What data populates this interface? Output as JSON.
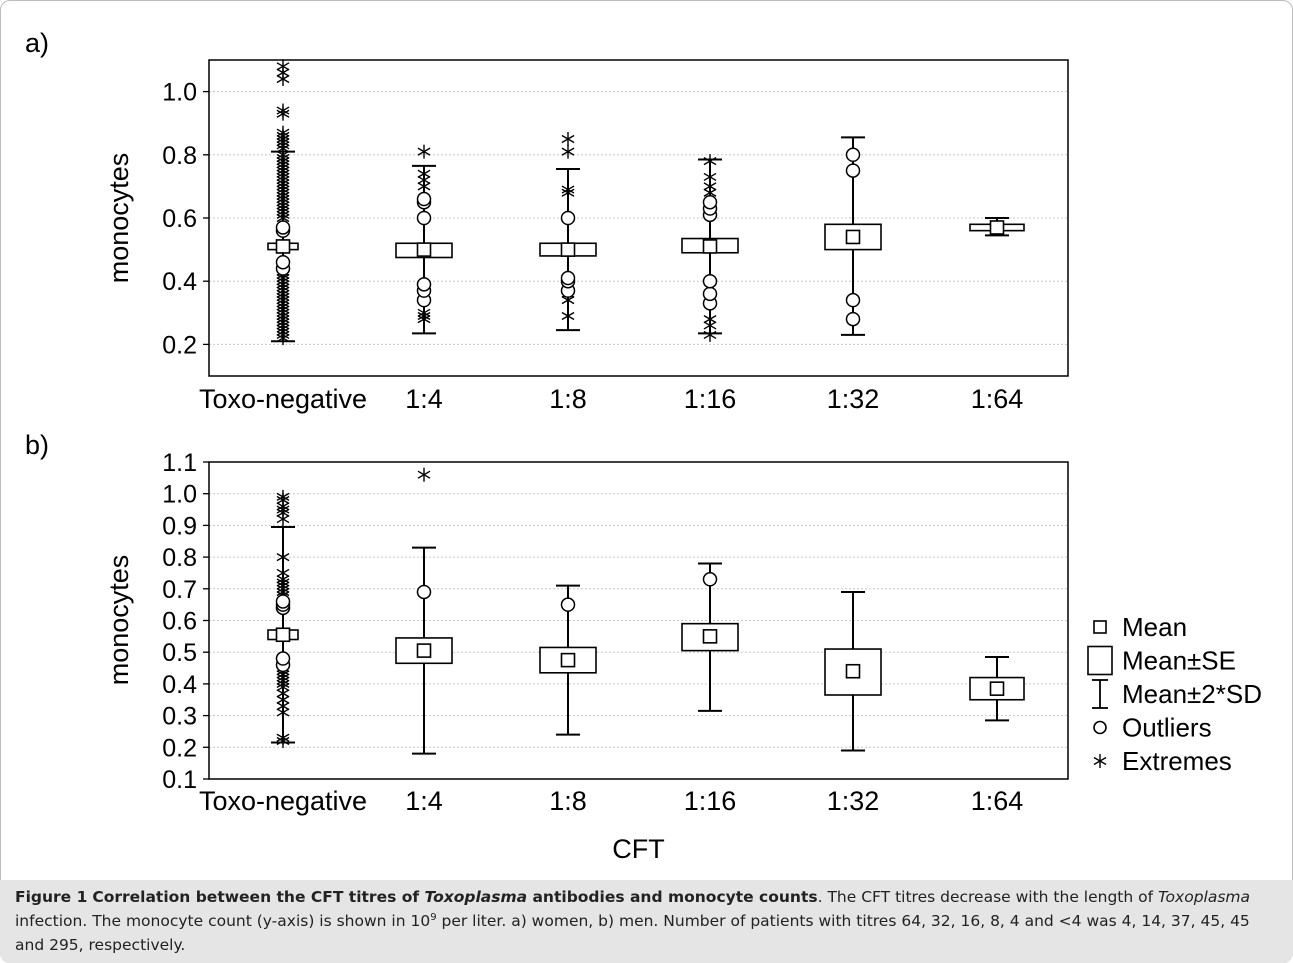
{
  "panels": {
    "a_label": "a)",
    "b_label": "b)"
  },
  "chart_data": [
    {
      "type": "box",
      "panel": "a)",
      "ylabel": "monocytes",
      "ylim": [
        0.1,
        1.1
      ],
      "yticks": [
        "0.2",
        "0.4",
        "0.6",
        "0.8",
        "1.0"
      ],
      "yticks_values": [
        0.2,
        0.4,
        0.6,
        0.8,
        1.0
      ],
      "categories": [
        "Toxo-negative",
        "1:4",
        "1:8",
        "1:16",
        "1:32",
        "1:64"
      ],
      "groups": [
        {
          "mean": 0.51,
          "se_low": 0.5,
          "se_high": 0.52,
          "sd_low": 0.21,
          "sd_high": 0.81,
          "outliers": [
            0.44,
            0.46,
            0.56,
            0.57
          ],
          "extremes": [
            0.22,
            0.23,
            0.24,
            0.25,
            0.26,
            0.27,
            0.28,
            0.29,
            0.3,
            0.31,
            0.32,
            0.33,
            0.34,
            0.35,
            0.36,
            0.37,
            0.38,
            0.39,
            0.4,
            0.41,
            0.42,
            0.43,
            0.6,
            0.61,
            0.62,
            0.63,
            0.64,
            0.65,
            0.66,
            0.67,
            0.68,
            0.69,
            0.7,
            0.71,
            0.72,
            0.73,
            0.74,
            0.75,
            0.76,
            0.77,
            0.78,
            0.79,
            0.8,
            0.82,
            0.83,
            0.84,
            0.85,
            0.86,
            0.87,
            0.93,
            0.94,
            1.04,
            1.06,
            1.08
          ]
        },
        {
          "mean": 0.5,
          "se_low": 0.475,
          "se_high": 0.52,
          "sd_low": 0.235,
          "sd_high": 0.765,
          "outliers": [
            0.34,
            0.37,
            0.39,
            0.6,
            0.65,
            0.66
          ],
          "extremes": [
            0.28,
            0.29,
            0.3,
            0.7,
            0.72,
            0.74,
            0.81
          ]
        },
        {
          "mean": 0.5,
          "se_low": 0.48,
          "se_high": 0.52,
          "sd_low": 0.245,
          "sd_high": 0.755,
          "outliers": [
            0.37,
            0.4,
            0.41,
            0.6
          ],
          "extremes": [
            0.29,
            0.34,
            0.36,
            0.68,
            0.69,
            0.81,
            0.85
          ]
        },
        {
          "mean": 0.51,
          "se_low": 0.49,
          "se_high": 0.535,
          "sd_low": 0.235,
          "sd_high": 0.785,
          "outliers": [
            0.33,
            0.36,
            0.4,
            0.61,
            0.63,
            0.65
          ],
          "extremes": [
            0.23,
            0.26,
            0.28,
            0.68,
            0.7,
            0.73,
            0.78
          ]
        },
        {
          "mean": 0.54,
          "se_low": 0.5,
          "se_high": 0.58,
          "sd_low": 0.23,
          "sd_high": 0.855,
          "outliers": [
            0.28,
            0.34,
            0.75,
            0.8
          ],
          "extremes": []
        },
        {
          "mean": 0.57,
          "se_low": 0.56,
          "se_high": 0.58,
          "sd_low": 0.545,
          "sd_high": 0.6,
          "outliers": [],
          "extremes": []
        }
      ]
    },
    {
      "type": "box",
      "panel": "b)",
      "ylabel": "monocytes",
      "xlabel": "CFT",
      "ylim": [
        0.1,
        1.1
      ],
      "yticks": [
        "0.1",
        "0.2",
        "0.3",
        "0.4",
        "0.5",
        "0.6",
        "0.7",
        "0.8",
        "0.9",
        "1.0",
        "1.1"
      ],
      "yticks_values": [
        0.1,
        0.2,
        0.3,
        0.4,
        0.5,
        0.6,
        0.7,
        0.8,
        0.9,
        1.0,
        1.1
      ],
      "categories": [
        "Toxo-negative",
        "1:4",
        "1:8",
        "1:16",
        "1:32",
        "1:64"
      ],
      "groups": [
        {
          "mean": 0.555,
          "se_low": 0.54,
          "se_high": 0.57,
          "sd_low": 0.215,
          "sd_high": 0.895,
          "outliers": [
            0.46,
            0.48,
            0.64,
            0.65,
            0.66
          ],
          "extremes": [
            0.22,
            0.23,
            0.31,
            0.33,
            0.35,
            0.37,
            0.39,
            0.4,
            0.41,
            0.42,
            0.43,
            0.44,
            0.45,
            0.68,
            0.69,
            0.7,
            0.71,
            0.72,
            0.73,
            0.75,
            0.8,
            0.92,
            0.94,
            0.95,
            0.96,
            0.98,
            0.99
          ]
        },
        {
          "mean": 0.505,
          "se_low": 0.465,
          "se_high": 0.545,
          "sd_low": 0.18,
          "sd_high": 0.83,
          "outliers": [
            0.69
          ],
          "extremes": [
            1.06
          ]
        },
        {
          "mean": 0.475,
          "se_low": 0.435,
          "se_high": 0.515,
          "sd_low": 0.24,
          "sd_high": 0.71,
          "outliers": [
            0.65
          ],
          "extremes": []
        },
        {
          "mean": 0.55,
          "se_low": 0.505,
          "se_high": 0.59,
          "sd_low": 0.315,
          "sd_high": 0.78,
          "outliers": [
            0.73
          ],
          "extremes": []
        },
        {
          "mean": 0.44,
          "se_low": 0.365,
          "se_high": 0.51,
          "sd_low": 0.19,
          "sd_high": 0.69,
          "outliers": [],
          "extremes": []
        },
        {
          "mean": 0.385,
          "se_low": 0.35,
          "se_high": 0.42,
          "sd_low": 0.285,
          "sd_high": 0.485,
          "outliers": [],
          "extremes": []
        }
      ]
    }
  ],
  "legend": {
    "items": [
      {
        "symbol": "mean",
        "label": "Mean"
      },
      {
        "symbol": "se",
        "label": "Mean±SE"
      },
      {
        "symbol": "sd",
        "label": "Mean±2*SD"
      },
      {
        "symbol": "outlier",
        "label": "Outliers"
      },
      {
        "symbol": "extreme",
        "label": "Extremes"
      }
    ]
  },
  "caption": {
    "figure_label": "Figure 1",
    "title_part1": "Correlation between the CFT titres of ",
    "title_italic": "Toxoplasma",
    "title_part2": " antibodies and monocyte counts",
    "sentence1": ". The CFT titres decrease with the length of ",
    "italic2": "Toxoplasma",
    "sentence2a": " infection. The monocyte count (y-axis) is shown in 10",
    "sup": "9",
    "sentence2b": " per liter. a) women, b) men. Number of patients with titres 64, 32, 16, 8, 4 and <4 was 4, 14, 37, 45, 45 and 295, respectively."
  }
}
